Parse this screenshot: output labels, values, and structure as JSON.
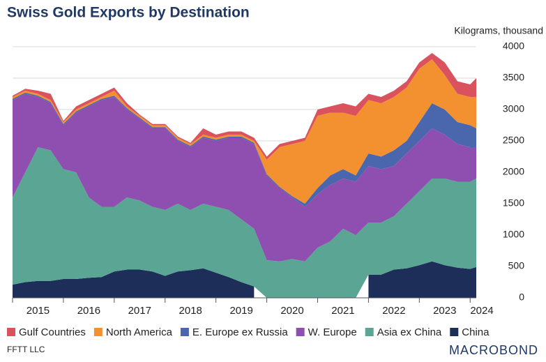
{
  "chart_data": {
    "type": "stacked-area",
    "title": "Swiss Gold Exports by Destination",
    "y_label": "Kilograms, thousand",
    "source": "FFTT LLC",
    "brand": "MACROBOND",
    "x": [
      2015.0,
      2015.25,
      2015.5,
      2015.75,
      2016.0,
      2016.25,
      2016.5,
      2016.75,
      2017.0,
      2017.25,
      2017.5,
      2017.75,
      2018.0,
      2018.25,
      2018.5,
      2018.75,
      2019.0,
      2019.25,
      2019.5,
      2019.75,
      2020.0,
      2020.25,
      2020.5,
      2020.75,
      2021.0,
      2021.25,
      2021.5,
      2021.75,
      2022.0,
      2022.25,
      2022.5,
      2022.75,
      2023.0,
      2023.25,
      2023.5,
      2023.75,
      2024.0,
      2024.12
    ],
    "xlim": [
      2015.0,
      2024.12
    ],
    "xticks": [
      {
        "value": 2015.5,
        "label": "2015"
      },
      {
        "value": 2016.5,
        "label": "2016"
      },
      {
        "value": 2017.5,
        "label": "2017"
      },
      {
        "value": 2018.5,
        "label": "2018"
      },
      {
        "value": 2019.5,
        "label": "2019"
      },
      {
        "value": 2020.5,
        "label": "2020"
      },
      {
        "value": 2021.5,
        "label": "2021"
      },
      {
        "value": 2022.5,
        "label": "2022"
      },
      {
        "value": 2023.5,
        "label": "2023"
      },
      {
        "value": 2024.5,
        "label": "2024"
      }
    ],
    "ylim": [
      0,
      4000
    ],
    "yticks": [
      0,
      500,
      1000,
      1500,
      2000,
      2500,
      3000,
      3500,
      4000
    ],
    "grid": true,
    "legend": "bottom",
    "series": [
      {
        "name": "Gulf Countries",
        "color": "#d9525e",
        "values": [
          20,
          30,
          50,
          100,
          20,
          50,
          50,
          50,
          50,
          50,
          20,
          20,
          20,
          20,
          20,
          100,
          50,
          50,
          50,
          50,
          50,
          50,
          50,
          50,
          100,
          100,
          150,
          150,
          100,
          100,
          100,
          100,
          100,
          100,
          200,
          200,
          200,
          300
        ]
      },
      {
        "name": "North America",
        "color": "#f39130",
        "values": [
          30,
          30,
          30,
          30,
          30,
          30,
          30,
          30,
          80,
          30,
          30,
          30,
          30,
          30,
          30,
          30,
          30,
          30,
          30,
          30,
          230,
          630,
          830,
          1000,
          1150,
          1000,
          900,
          950,
          850,
          850,
          850,
          850,
          850,
          700,
          550,
          450,
          450,
          500
        ]
      },
      {
        "name": "E. Europe ex Russia",
        "color": "#4a66ac",
        "values": [
          20,
          20,
          20,
          20,
          20,
          20,
          20,
          20,
          20,
          20,
          20,
          20,
          20,
          20,
          20,
          20,
          20,
          20,
          20,
          20,
          20,
          20,
          20,
          50,
          100,
          150,
          150,
          100,
          200,
          200,
          250,
          200,
          300,
          400,
          400,
          350,
          350,
          300
        ]
      },
      {
        "name": "W. Europe",
        "color": "#8f4fb0",
        "values": [
          1550,
          1250,
          800,
          750,
          700,
          950,
          1450,
          1700,
          1750,
          1400,
          1300,
          1250,
          1300,
          1000,
          1000,
          1050,
          1050,
          1150,
          1300,
          1350,
          1350,
          1170,
          980,
          870,
          850,
          900,
          800,
          850,
          900,
          850,
          800,
          800,
          800,
          800,
          700,
          600,
          550,
          500
        ]
      },
      {
        "name": "Asia ex China",
        "color": "#5aa593",
        "values": [
          1390,
          1750,
          2130,
          2080,
          1750,
          1700,
          1280,
          1120,
          1030,
          1150,
          1100,
          1030,
          1050,
          1080,
          960,
          1030,
          1050,
          1070,
          1000,
          920,
          600,
          580,
          620,
          580,
          800,
          900,
          1100,
          1000,
          830,
          830,
          850,
          1030,
          1180,
          1320,
          1380,
          1370,
          1390,
          1410
        ]
      },
      {
        "name": "China",
        "color": "#1d2e58",
        "values": [
          210,
          250,
          270,
          270,
          300,
          300,
          320,
          330,
          420,
          450,
          450,
          420,
          350,
          420,
          440,
          470,
          400,
          330,
          250,
          180,
          null,
          null,
          null,
          null,
          null,
          null,
          null,
          null,
          370,
          370,
          450,
          470,
          520,
          580,
          520,
          480,
          460,
          490
        ]
      }
    ]
  }
}
